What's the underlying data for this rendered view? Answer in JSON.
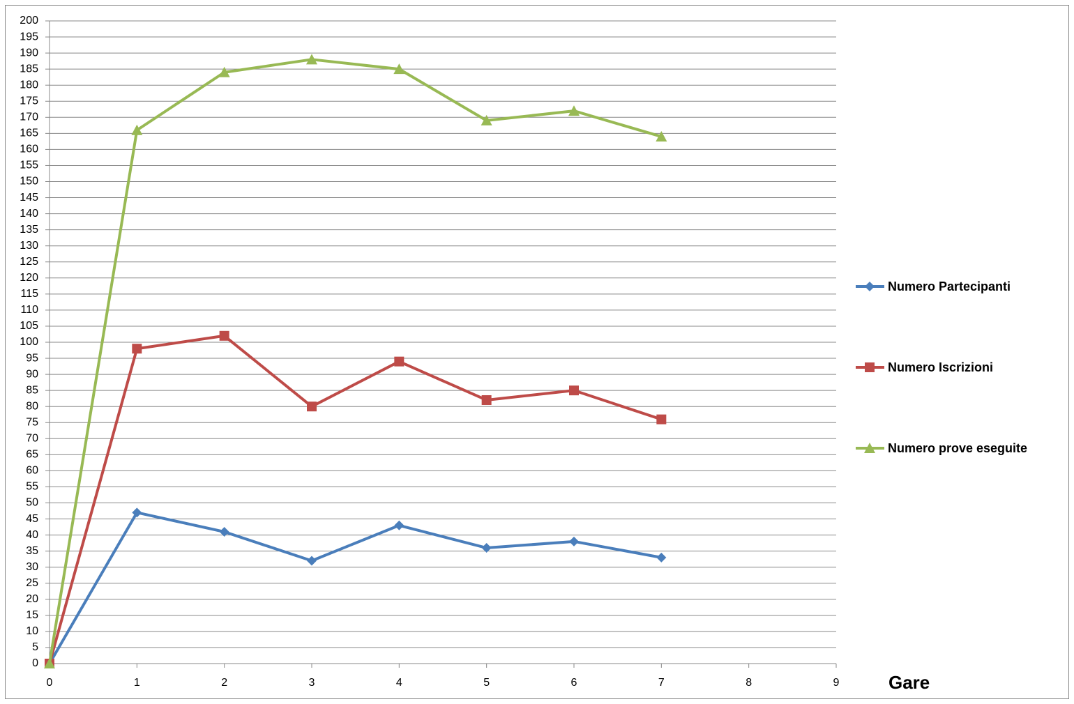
{
  "chart_data": {
    "type": "line",
    "x_label": "Gare",
    "x": [
      0,
      1,
      2,
      3,
      4,
      5,
      6,
      7
    ],
    "series": [
      {
        "name": "Numero Partecipanti",
        "color": "#4a7ebb",
        "marker": "diamond",
        "values": [
          0,
          47,
          41,
          32,
          43,
          36,
          38,
          33
        ]
      },
      {
        "name": "Numero Iscrizioni",
        "color": "#be4b48",
        "marker": "square",
        "values": [
          0,
          98,
          102,
          80,
          94,
          82,
          85,
          76
        ]
      },
      {
        "name": "Numero prove eseguite",
        "color": "#98b954",
        "marker": "triangle",
        "values": [
          0,
          166,
          184,
          188,
          185,
          169,
          172,
          164
        ]
      }
    ],
    "xlim": [
      0,
      9
    ],
    "xticks": [
      0,
      1,
      2,
      3,
      4,
      5,
      6,
      7,
      8,
      9
    ],
    "ylim": [
      0,
      200
    ],
    "yticks": [
      0,
      5,
      10,
      15,
      20,
      25,
      30,
      35,
      40,
      45,
      50,
      55,
      60,
      65,
      70,
      75,
      80,
      85,
      90,
      95,
      100,
      105,
      110,
      115,
      120,
      125,
      130,
      135,
      140,
      145,
      150,
      155,
      160,
      165,
      170,
      175,
      180,
      185,
      190,
      195,
      200
    ],
    "grid": "y",
    "legend": "right"
  }
}
